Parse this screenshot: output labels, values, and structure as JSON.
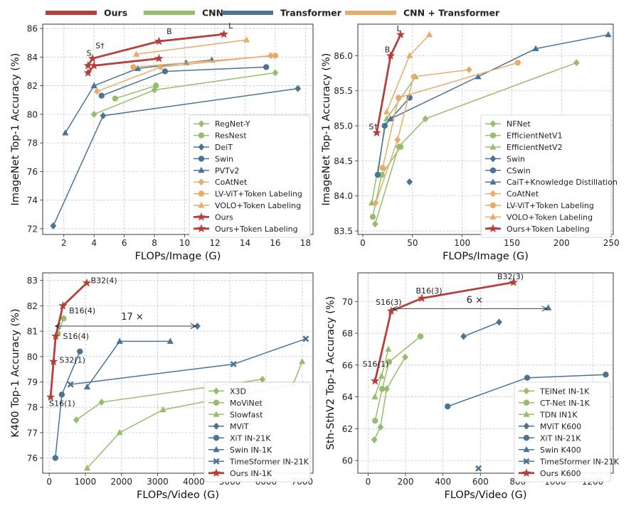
{
  "top_legend": [
    {
      "label": "Ours",
      "color": "#b5403b"
    },
    {
      "label": "CNN",
      "color": "#97bd6c"
    },
    {
      "label": "Transformer",
      "color": "#4a7395"
    },
    {
      "label": "CNN + Transformer",
      "color": "#e8ac6a"
    }
  ],
  "chart_data": [
    {
      "id": "tl",
      "type": "line",
      "xlabel": "FLOPs/Image (G)",
      "ylabel": "ImageNet Top-1 Accuracy (%)",
      "xlim": [
        0.6,
        18.5
      ],
      "ylim": [
        71.6,
        86.3
      ],
      "xticks": [
        2,
        4,
        6,
        8,
        10,
        12,
        14,
        16,
        18
      ],
      "yticks": [
        72,
        74,
        76,
        78,
        80,
        82,
        84,
        86
      ],
      "grid": true,
      "legend_position": "bottom-right",
      "series": [
        {
          "name": "RegNet-Y",
          "color": "#97bd6c",
          "marker": "diamond",
          "x": [
            4.0,
            8.0,
            16.0
          ],
          "y": [
            80.0,
            81.7,
            82.9
          ]
        },
        {
          "name": "ResNest",
          "color": "#97bd6c",
          "marker": "circle",
          "x": [
            5.4,
            8.1
          ],
          "y": [
            81.1,
            82.0
          ]
        },
        {
          "name": "DeiT",
          "color": "#4a7395",
          "marker": "diamond",
          "x": [
            1.3,
            4.6,
            17.5
          ],
          "y": [
            72.2,
            79.9,
            81.8
          ]
        },
        {
          "name": "Swin",
          "color": "#4a7395",
          "marker": "circle",
          "x": [
            4.5,
            8.7,
            15.4
          ],
          "y": [
            81.3,
            83.0,
            83.3
          ]
        },
        {
          "name": "PVTv2",
          "color": "#4a7395",
          "marker": "triangle",
          "x": [
            2.1,
            4.0,
            6.9,
            10.1,
            11.8
          ],
          "y": [
            78.7,
            82.0,
            83.2,
            83.6,
            83.8
          ]
        },
        {
          "name": "CoAtNet",
          "color": "#e8ac6a",
          "marker": "diamond",
          "x": [
            4.2,
            8.4,
            15.7
          ],
          "y": [
            81.6,
            83.3,
            84.1
          ]
        },
        {
          "name": "LV-ViT+Token Labeling",
          "color": "#e8ac6a",
          "marker": "circle",
          "x": [
            6.6,
            16.0
          ],
          "y": [
            83.3,
            84.1
          ]
        },
        {
          "name": "VOLO+Token Labeling",
          "color": "#e8ac6a",
          "marker": "triangle",
          "x": [
            6.8,
            14.1
          ],
          "y": [
            84.2,
            85.2
          ]
        },
        {
          "name": "Ours",
          "color": "#b5403b",
          "marker": "star",
          "x": [
            3.6,
            3.9,
            8.3,
            12.6
          ],
          "y": [
            83.4,
            83.9,
            85.1,
            85.6
          ]
        },
        {
          "name": "Ours+Token Labeling",
          "color": "#b5403b",
          "marker": "star",
          "x": [
            3.6,
            4.0,
            8.3
          ],
          "y": [
            82.9,
            83.4,
            83.9
          ]
        }
      ],
      "annotations": [
        {
          "text": "S",
          "x": 3.5,
          "y": 84.1
        },
        {
          "text": "S†",
          "x": 4.1,
          "y": 84.6
        },
        {
          "text": "B",
          "x": 8.8,
          "y": 85.6
        },
        {
          "text": "L",
          "x": 12.9,
          "y": 86.0
        }
      ]
    },
    {
      "id": "tr",
      "type": "line",
      "xlabel": "FLOPs/Image (G)",
      "ylabel": "ImageNet Top-1 Accuracy (%)",
      "xlim": [
        -5,
        252
      ],
      "ylim": [
        83.45,
        86.45
      ],
      "xticks": [
        0,
        50,
        100,
        150,
        200,
        250
      ],
      "yticks": [
        83.5,
        84.0,
        84.5,
        85.0,
        85.5,
        86.0
      ],
      "grid": true,
      "legend_position": "bottom-right",
      "series": [
        {
          "name": "NFNet",
          "color": "#97bd6c",
          "marker": "diamond",
          "x": [
            12.4,
            36,
            63,
            215
          ],
          "y": [
            83.6,
            84.7,
            85.1,
            85.9
          ]
        },
        {
          "name": "EfficientNetV1",
          "color": "#97bd6c",
          "marker": "circle",
          "x": [
            10,
            19,
            38
          ],
          "y": [
            83.7,
            84.3,
            84.7
          ]
        },
        {
          "name": "EfficientNetV2",
          "color": "#97bd6c",
          "marker": "triangle",
          "x": [
            9,
            24,
            53
          ],
          "y": [
            83.9,
            85.1,
            85.7
          ]
        },
        {
          "name": "Swin",
          "color": "#4a7395",
          "marker": "diamond",
          "x": [
            47
          ],
          "y": [
            84.2
          ]
        },
        {
          "name": "CSwin",
          "color": "#4a7395",
          "marker": "circle",
          "x": [
            15,
            22,
            47
          ],
          "y": [
            84.3,
            85.0,
            85.4
          ]
        },
        {
          "name": "CaiT+Knowledge Distillation",
          "color": "#4a7395",
          "marker": "triangle",
          "x": [
            28,
            116,
            174,
            247
          ],
          "y": [
            85.1,
            85.7,
            86.1,
            86.3
          ]
        },
        {
          "name": "CoAtNet",
          "color": "#e8ac6a",
          "marker": "diamond",
          "x": [
            13,
            35,
            51,
            107
          ],
          "y": [
            83.9,
            84.8,
            85.7,
            85.8
          ]
        },
        {
          "name": "LV-ViT+Token Labeling",
          "color": "#e8ac6a",
          "marker": "circle",
          "x": [
            20,
            36,
            156
          ],
          "y": [
            84.4,
            85.4,
            85.9
          ]
        },
        {
          "name": "VOLO+Token Labeling",
          "color": "#e8ac6a",
          "marker": "triangle",
          "x": [
            24,
            47,
            67
          ],
          "y": [
            85.2,
            86.0,
            86.3
          ]
        },
        {
          "name": "Ours+Token Labeling",
          "color": "#b5403b",
          "marker": "star",
          "x": [
            14,
            28,
            38
          ],
          "y": [
            84.9,
            86.0,
            86.3
          ]
        }
      ],
      "annotations": [
        {
          "text": "S†",
          "x": 6,
          "y": 84.95
        },
        {
          "text": "B",
          "x": 22,
          "y": 86.05
        },
        {
          "text": "L",
          "x": 34,
          "y": 86.35
        }
      ]
    },
    {
      "id": "bl",
      "type": "line",
      "xlabel": "FLOPs/Video (G)",
      "ylabel": "K400 Top-1 Accuracy (%)",
      "xlim": [
        -180,
        7300
      ],
      "ylim": [
        75.4,
        83.3
      ],
      "xticks": [
        0,
        1000,
        2000,
        3000,
        4000,
        5000,
        6000,
        7000
      ],
      "yticks": [
        76,
        77,
        78,
        79,
        80,
        81,
        82,
        83
      ],
      "grid": true,
      "legend_position": "bottom-right",
      "series": [
        {
          "name": "X3D",
          "color": "#97bd6c",
          "marker": "diamond",
          "x": [
            750,
            1450,
            5900
          ],
          "y": [
            77.5,
            78.2,
            79.1
          ]
        },
        {
          "name": "MoViNet",
          "color": "#97bd6c",
          "marker": "circle",
          "x": [
            240,
            400
          ],
          "y": [
            80.9,
            81.5
          ]
        },
        {
          "name": "Slowfast",
          "color": "#97bd6c",
          "marker": "triangle",
          "x": [
            1050,
            1950,
            3150,
            6750,
            7000
          ],
          "y": [
            75.6,
            77.0,
            77.9,
            78.9,
            79.8
          ]
        },
        {
          "name": "MViT",
          "color": "#4a7395",
          "marker": "diamond",
          "x": [
            4100
          ],
          "y": [
            81.2
          ]
        },
        {
          "name": "XiT IN-21K",
          "color": "#4a7395",
          "marker": "circle",
          "x": [
            170,
            350,
            850
          ],
          "y": [
            76.0,
            78.5,
            80.2
          ]
        },
        {
          "name": "Swin IN-1K",
          "color": "#4a7395",
          "marker": "triangle",
          "x": [
            1050,
            1950,
            3350
          ],
          "y": [
            78.8,
            80.6,
            80.6
          ]
        },
        {
          "name": "TimeSformer IN-21K",
          "color": "#4a7395",
          "marker": "x",
          "x": [
            590,
            5100,
            7100
          ],
          "y": [
            78.9,
            79.7,
            80.7
          ]
        },
        {
          "name": "Ours IN-1K",
          "color": "#b5403b",
          "marker": "star",
          "x": [
            40,
            120,
            180,
            380,
            1040
          ],
          "y": [
            78.4,
            79.8,
            80.8,
            82.0,
            82.9
          ]
        }
      ],
      "annotations": [
        {
          "text": "B32(4)",
          "x": 1150,
          "y": 82.9
        },
        {
          "text": "B16(4)",
          "x": 550,
          "y": 81.7
        },
        {
          "text": "S16(4)",
          "x": 380,
          "y": 80.7
        },
        {
          "text": "S32(1)",
          "x": 280,
          "y": 79.75
        },
        {
          "text": "S16(1)",
          "x": 0,
          "y": 78.05
        },
        {
          "text": "17 ×",
          "x": 2300,
          "y": 81.45
        }
      ]
    },
    {
      "id": "br",
      "type": "line",
      "xlabel": "FLOPs/Video (G)",
      "ylabel": "Sth-SthV2 Top-1 Accuracy (%)",
      "xlim": [
        -55,
        1310
      ],
      "ylim": [
        59.2,
        71.8
      ],
      "xticks": [
        0,
        200,
        400,
        600,
        800,
        1000,
        1200
      ],
      "yticks": [
        60,
        62,
        64,
        66,
        68,
        70
      ],
      "grid": true,
      "legend_position": "bottom-right",
      "series": [
        {
          "name": "TEINet IN-1K",
          "color": "#97bd6c",
          "marker": "diamond",
          "x": [
            33,
            66,
            99,
            198
          ],
          "y": [
            61.3,
            62.1,
            64.5,
            66.5
          ]
        },
        {
          "name": "CT-Net IN-1K",
          "color": "#97bd6c",
          "marker": "circle",
          "x": [
            37,
            75,
            112,
            280
          ],
          "y": [
            62.5,
            64.5,
            66.2,
            67.8
          ]
        },
        {
          "name": "TDN IN1K",
          "color": "#97bd6c",
          "marker": "triangle",
          "x": [
            36,
            72,
            108
          ],
          "y": [
            64.0,
            65.3,
            67.0
          ]
        },
        {
          "name": "MViT K600",
          "color": "#4a7395",
          "marker": "diamond",
          "x": [
            510,
            700
          ],
          "y": [
            67.8,
            68.7
          ]
        },
        {
          "name": "XiT IN-21K",
          "color": "#4a7395",
          "marker": "circle",
          "x": [
            425,
            850,
            1270
          ],
          "y": [
            63.4,
            65.2,
            65.4
          ]
        },
        {
          "name": "Swin K400",
          "color": "#4a7395",
          "marker": "triangle",
          "x": [
            963
          ],
          "y": [
            69.6
          ]
        },
        {
          "name": "TimeSformer IN-21K",
          "color": "#4a7395",
          "marker": "x",
          "x": [
            590
          ],
          "y": [
            59.5
          ]
        },
        {
          "name": "Ours K600",
          "color": "#b5403b",
          "marker": "star",
          "x": [
            37,
            123,
            287,
            777
          ],
          "y": [
            65.0,
            69.4,
            70.2,
            71.2
          ]
        }
      ],
      "annotations": [
        {
          "text": "B32(3)",
          "x": 690,
          "y": 71.4
        },
        {
          "text": "B16(3)",
          "x": 255,
          "y": 70.5
        },
        {
          "text": "S16(3)",
          "x": 40,
          "y": 69.8
        },
        {
          "text": "S16(1)",
          "x": -30,
          "y": 65.9
        },
        {
          "text": "6 ×",
          "x": 570,
          "y": 69.9
        }
      ]
    }
  ]
}
